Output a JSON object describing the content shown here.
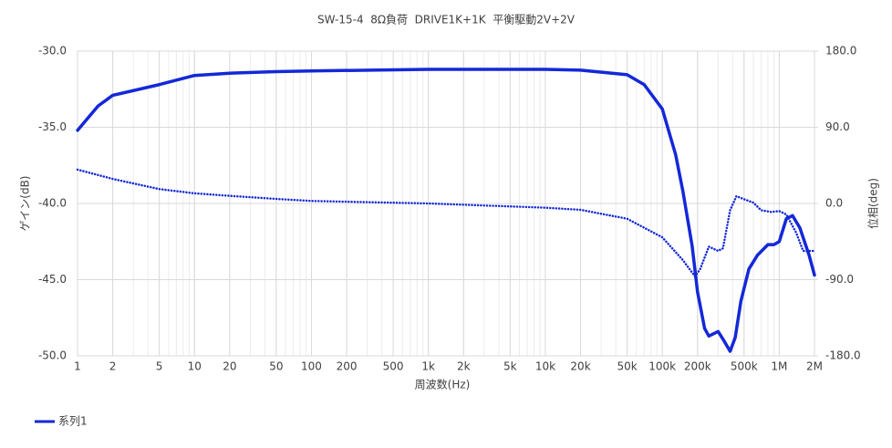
{
  "chart_data": {
    "type": "line",
    "title": "SW-15-4  8Ω負荷  DRIVE1K+1K  平衡駆動2V+2V",
    "xlabel": "周波数(Hz)",
    "ylabel": "ゲイン(dB)",
    "y2label": "位相(deg)",
    "xscale": "log",
    "xlim": [
      1,
      2000000
    ],
    "xticks": [
      1,
      2,
      5,
      10,
      20,
      50,
      100,
      200,
      500,
      {
        "value": 1000,
        "label": "1k"
      },
      {
        "value": 2000,
        "label": "2k"
      },
      {
        "value": 5000,
        "label": "5k"
      },
      {
        "value": 10000,
        "label": "10k"
      },
      {
        "value": 20000,
        "label": "20k"
      },
      {
        "value": 50000,
        "label": "50k"
      },
      {
        "value": 100000,
        "label": "100k"
      },
      {
        "value": 200000,
        "label": "200k"
      },
      {
        "value": 500000,
        "label": "500k"
      },
      {
        "value": 1000000,
        "label": "1M"
      },
      {
        "value": 2000000,
        "label": "2M"
      }
    ],
    "ylim": [
      -50,
      -30
    ],
    "yticks": [
      {
        "value": -50,
        "label": "-50.0"
      },
      {
        "value": -45,
        "label": "-45.0"
      },
      {
        "value": -40,
        "label": "-40.0"
      },
      {
        "value": -35,
        "label": "-35.0"
      },
      {
        "value": -30,
        "label": "-30.0"
      }
    ],
    "y2lim": [
      -180,
      180
    ],
    "y2ticks": [
      {
        "value": -180,
        "label": "-180.0"
      },
      {
        "value": -90,
        "label": "-90.0"
      },
      {
        "value": 0,
        "label": "0.0"
      },
      {
        "value": 90,
        "label": "90.0"
      },
      {
        "value": 180,
        "label": "180.0"
      }
    ],
    "grid": true,
    "minor_grid": true,
    "legend": "bottom-left",
    "series": [
      {
        "name": "系列1",
        "color": "#1428d8",
        "style": "solid",
        "x": [
          1,
          1.5,
          2,
          5,
          10,
          20,
          50,
          100,
          1000,
          10000,
          20000,
          50000,
          70000,
          100000,
          130000,
          150000,
          180000,
          200000,
          230000,
          250000,
          300000,
          330000,
          380000,
          420000,
          470000,
          550000,
          650000,
          800000,
          900000,
          1000000,
          1150000,
          1300000,
          1500000,
          1800000,
          2000000
        ],
        "values": [
          -35.2,
          -33.6,
          -32.9,
          -32.2,
          -31.6,
          -31.45,
          -31.35,
          -31.3,
          -31.2,
          -31.2,
          -31.25,
          -31.55,
          -32.2,
          -33.8,
          -36.8,
          -39.2,
          -42.8,
          -45.8,
          -48.2,
          -48.7,
          -48.4,
          -48.9,
          -49.7,
          -48.8,
          -46.4,
          -44.3,
          -43.4,
          -42.7,
          -42.7,
          -42.5,
          -41.0,
          -40.8,
          -41.6,
          -43.4,
          -44.7
        ]
      },
      {
        "color": "#1428d8",
        "style": "dotted",
        "axis": "y2",
        "x": [
          1,
          2,
          5,
          10,
          20,
          50,
          100,
          1000,
          10000,
          20000,
          50000,
          100000,
          150000,
          190000,
          210000,
          250000,
          300000,
          330000,
          380000,
          430000,
          500000,
          600000,
          700000,
          850000,
          1000000,
          1150000,
          1400000,
          1600000,
          2000000
        ],
        "values": [
          40,
          29,
          17,
          12,
          9,
          5.4,
          3,
          0,
          -5,
          -7.5,
          -18,
          -40,
          -67,
          -86,
          -78,
          -51,
          -56,
          -53,
          -8,
          8.6,
          5,
          1,
          -8,
          -10,
          -9,
          -13,
          -35,
          -56,
          -56
        ]
      }
    ]
  }
}
